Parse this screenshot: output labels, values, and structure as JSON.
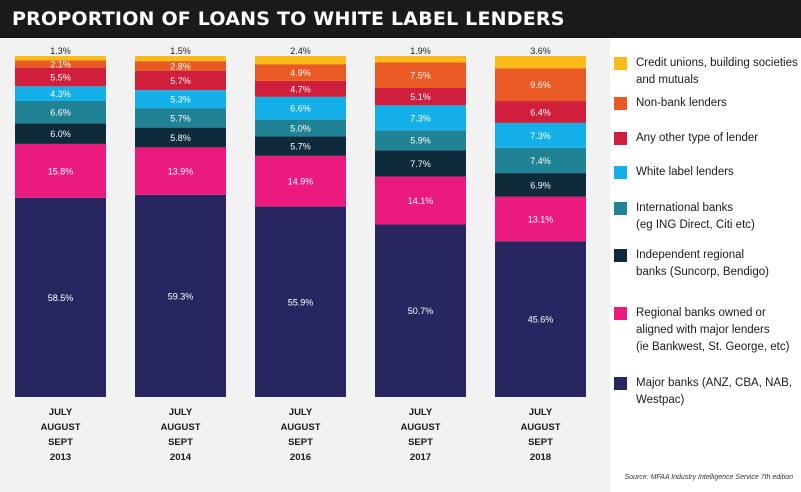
{
  "title": "PROPORTION OF LOANS TO WHITE LABEL LENDERS",
  "source": "Source: MFAA Industry Intelligence Service 7th edition",
  "chart_data": {
    "type": "bar",
    "stacked": true,
    "categories": [
      [
        "JULY",
        "AUGUST",
        "SEPT",
        "2013"
      ],
      [
        "JULY",
        "AUGUST",
        "SEPT",
        "2014"
      ],
      [
        "JULY",
        "AUGUST",
        "SEPT",
        "2016"
      ],
      [
        "JULY",
        "AUGUST",
        "SEPT",
        "2017"
      ],
      [
        "JULY",
        "AUGUST",
        "SEPT",
        "2018"
      ]
    ],
    "series": [
      {
        "name": "Major banks (ANZ, CBA, NAB, Westpac)",
        "color": "#272660",
        "values": [
          58.5,
          59.3,
          55.9,
          50.7,
          45.6
        ],
        "labels": [
          "58.5%",
          "59.3%",
          "55.9%",
          "50.7%",
          "45.6%"
        ]
      },
      {
        "name": "Regional banks owned or aligned with major lenders (ie Bankwest, St. George, etc)",
        "color": "#ea1a7f",
        "values": [
          15.8,
          13.9,
          14.9,
          14.1,
          13.1
        ],
        "labels": [
          "15.8%",
          "13.9%",
          "14.9%",
          "14.1%",
          "13.1%"
        ]
      },
      {
        "name": "Independent regional banks (Suncorp, Bendigo)",
        "color": "#0f2a3a",
        "values": [
          6.0,
          5.8,
          5.7,
          7.7,
          6.9
        ],
        "labels": [
          "6.0%",
          "5.8%",
          "5.7%",
          "7.7%",
          "6.9%"
        ]
      },
      {
        "name": "International banks (eg ING Direct, Citi etc)",
        "color": "#1f8295",
        "values": [
          6.6,
          5.7,
          5.0,
          5.9,
          7.4
        ],
        "labels": [
          "6.6%",
          "5.7%",
          "5.0%",
          "5.9%",
          "7.4%"
        ]
      },
      {
        "name": "White label lenders",
        "color": "#14b0ea",
        "values": [
          4.3,
          5.3,
          6.6,
          7.3,
          7.3
        ],
        "labels": [
          "4.3%",
          "5.3%",
          "6.6%",
          "7.3%",
          "7.3%"
        ]
      },
      {
        "name": "Any other type of lender",
        "color": "#d01f3c",
        "values": [
          5.5,
          5.7,
          4.7,
          5.1,
          6.4
        ],
        "labels": [
          "5.5%",
          "5.7%",
          "4.7%",
          "5.1%",
          "6.4%"
        ]
      },
      {
        "name": "Non-bank lenders",
        "color": "#ea5a24",
        "values": [
          2.1,
          2.8,
          4.9,
          7.5,
          9.6
        ],
        "labels": [
          "2.1%",
          "2.8%",
          "4.9%",
          "7.5%",
          "9.6%"
        ]
      },
      {
        "name": "Credit unions, building societies and mutuals",
        "color": "#fbbc1a",
        "values": [
          1.3,
          1.5,
          2.4,
          1.9,
          3.6
        ],
        "labels": [
          "1.3%",
          "1.5%",
          "2.4%",
          "1.9%",
          "3.6%"
        ]
      }
    ],
    "legend": {
      "placement": "right",
      "items": [
        {
          "label_lines": [
            "Credit unions, building societies",
            "and mutuals"
          ],
          "color": "#fbbc1a"
        },
        {
          "label_lines": [
            "Non-bank lenders"
          ],
          "color": "#ea5a24"
        },
        {
          "label_lines": [
            "Any other type of lender"
          ],
          "color": "#d01f3c"
        },
        {
          "label_lines": [
            "White label lenders"
          ],
          "color": "#14b0ea"
        },
        {
          "label_lines": [
            "International banks",
            "(eg ING Direct, Citi etc)"
          ],
          "color": "#1f8295"
        },
        {
          "label_lines": [
            "Independent regional",
            "banks (Suncorp, Bendigo)"
          ],
          "color": "#0f2a3a"
        },
        {
          "label_lines": [
            "Regional banks owned or",
            "aligned with major lenders",
            "(ie Bankwest, St. George, etc)"
          ],
          "color": "#ea1a7f"
        },
        {
          "label_lines": [
            "Major banks (ANZ, CBA, NAB,",
            "Westpac)"
          ],
          "color": "#272660"
        }
      ]
    },
    "grid": false
  }
}
